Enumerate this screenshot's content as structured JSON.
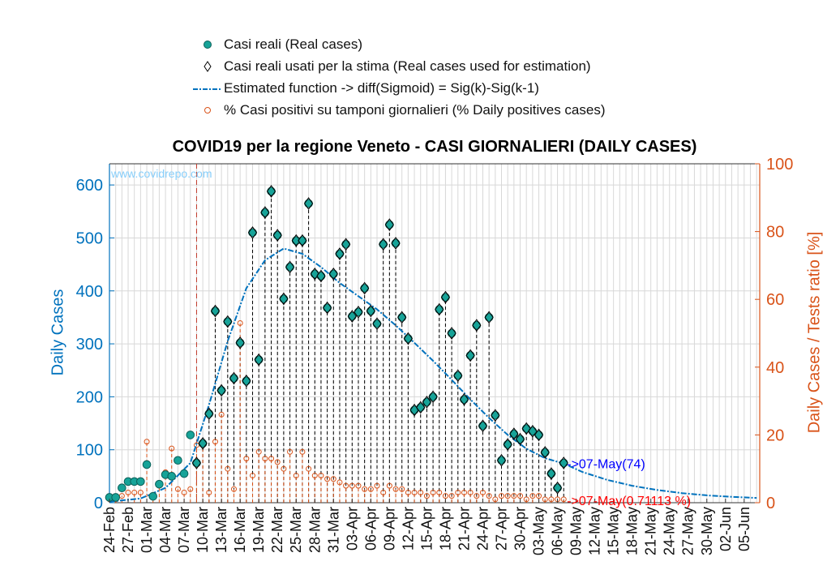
{
  "legend": {
    "real_cases": "Casi reali (Real cases)",
    "used_cases": "Casi reali usati per la stima (Real cases used for estimation)",
    "estimated": "Estimated function -> diff(Sigmoid) = Sig(k)-Sig(k-1)",
    "positives": "% Casi positivi su tamponi giornalieri (% Daily positives cases)"
  },
  "watermark": "www.covidrepo.com",
  "colors": {
    "real": "#17A398",
    "estimate": "#0072BD",
    "percent": "#D95319",
    "annot_blue": "#0000FF",
    "annot_red": "#FF0000"
  },
  "chart_data": {
    "type": "line",
    "title": "COVID19 per la regione Veneto - CASI GIORNALIERI (DAILY CASES)",
    "ylabel_left": "Daily Cases",
    "ylabel_right": "Daily Cases / Tests ratio [%]",
    "ylim_left": [
      0,
      640
    ],
    "ylim_right": [
      0,
      100
    ],
    "yticks_left": [
      0,
      100,
      200,
      300,
      400,
      500,
      600
    ],
    "yticks_right": [
      0,
      20,
      40,
      60,
      80,
      100
    ],
    "start_date": "24-Feb",
    "end_date": "07-Jun",
    "xtick_labels": [
      "24-Feb",
      "27-Feb",
      "01-Mar",
      "04-Mar",
      "07-Mar",
      "10-Mar",
      "13-Mar",
      "16-Mar",
      "19-Mar",
      "22-Mar",
      "25-Mar",
      "28-Mar",
      "31-Mar",
      "03-Apr",
      "06-Apr",
      "09-Apr",
      "12-Apr",
      "15-Apr",
      "18-Apr",
      "21-Apr",
      "24-Apr",
      "27-Apr",
      "30-Apr",
      "03-May",
      "06-May",
      "09-May",
      "12-May",
      "15-May",
      "18-May",
      "21-May",
      "24-May",
      "27-May",
      "30-May",
      "02-Jun",
      "05-Jun"
    ],
    "grid": true,
    "vline_date": "09-Mar",
    "series": [
      {
        "name": "Casi reali (Real cases)",
        "dates": [
          "24-Feb",
          "25-Feb",
          "26-Feb",
          "27-Feb",
          "28-Feb",
          "29-Feb",
          "01-Mar",
          "02-Mar",
          "03-Mar",
          "04-Mar",
          "05-Mar",
          "06-Mar",
          "07-Mar",
          "08-Mar",
          "09-Mar",
          "10-Mar",
          "11-Mar",
          "12-Mar",
          "13-Mar",
          "14-Mar",
          "15-Mar",
          "16-Mar",
          "17-Mar",
          "18-Mar",
          "19-Mar",
          "20-Mar",
          "21-Mar",
          "22-Mar",
          "23-Mar",
          "24-Mar",
          "25-Mar",
          "26-Mar",
          "27-Mar",
          "28-Mar",
          "29-Mar",
          "30-Mar",
          "31-Mar",
          "01-Apr",
          "02-Apr",
          "03-Apr",
          "04-Apr",
          "05-Apr",
          "06-Apr",
          "07-Apr",
          "08-Apr",
          "09-Apr",
          "10-Apr",
          "11-Apr",
          "12-Apr",
          "13-Apr",
          "14-Apr",
          "15-Apr",
          "16-Apr",
          "17-Apr",
          "18-Apr",
          "19-Apr",
          "20-Apr",
          "21-Apr",
          "22-Apr",
          "23-Apr",
          "24-Apr",
          "25-Apr",
          "26-Apr",
          "27-Apr",
          "28-Apr",
          "29-Apr",
          "30-Apr",
          "01-May",
          "02-May",
          "03-May",
          "04-May",
          "05-May",
          "06-May",
          "07-May"
        ],
        "values": [
          10,
          10,
          28,
          40,
          40,
          40,
          72,
          12,
          35,
          53,
          50,
          80,
          55,
          128,
          75,
          112,
          168,
          362,
          212,
          342,
          235,
          302,
          230,
          510,
          270,
          548,
          588,
          505,
          385,
          445,
          495,
          495,
          565,
          432,
          428,
          368,
          432,
          470,
          488,
          352,
          360,
          405,
          362,
          338,
          488,
          525,
          490,
          350,
          310,
          175,
          180,
          190,
          200,
          365,
          388,
          320,
          240,
          195,
          278,
          335,
          145,
          350,
          165,
          80,
          110,
          130,
          120,
          140,
          135,
          128,
          95,
          55,
          28,
          75
        ],
        "color": "#17A398"
      },
      {
        "name": "Estimated function -> diff(Sigmoid) = Sig(k)-Sig(k-1)",
        "dates": [
          "24-Feb",
          "29-Feb",
          "04-Mar",
          "08-Mar",
          "11-Mar",
          "14-Mar",
          "17-Mar",
          "20-Mar",
          "23-Mar",
          "26-Mar",
          "29-Mar",
          "01-Apr",
          "04-Apr",
          "07-Apr",
          "10-Apr",
          "13-Apr",
          "16-Apr",
          "19-Apr",
          "22-Apr",
          "25-Apr",
          "28-Apr",
          "01-May",
          "04-May",
          "07-May",
          "10-May",
          "14-May",
          "18-May",
          "22-May",
          "26-May",
          "30-May",
          "03-Jun",
          "07-Jun"
        ],
        "values": [
          2,
          8,
          28,
          75,
          185,
          305,
          405,
          458,
          480,
          470,
          445,
          415,
          390,
          365,
          335,
          302,
          268,
          232,
          195,
          160,
          128,
          102,
          84,
          74,
          58,
          43,
          32,
          24,
          18,
          14,
          11,
          9
        ],
        "color": "#0072BD"
      },
      {
        "name": "% Casi positivi su tamponi giornalieri (% Daily positives cases)",
        "dates": [
          "24-Feb",
          "25-Feb",
          "26-Feb",
          "27-Feb",
          "28-Feb",
          "29-Feb",
          "01-Mar",
          "02-Mar",
          "03-Mar",
          "04-Mar",
          "05-Mar",
          "06-Mar",
          "07-Mar",
          "08-Mar",
          "09-Mar",
          "10-Mar",
          "11-Mar",
          "12-Mar",
          "13-Mar",
          "14-Mar",
          "15-Mar",
          "16-Mar",
          "17-Mar",
          "18-Mar",
          "19-Mar",
          "20-Mar",
          "21-Mar",
          "22-Mar",
          "23-Mar",
          "24-Mar",
          "25-Mar",
          "26-Mar",
          "27-Mar",
          "28-Mar",
          "29-Mar",
          "30-Mar",
          "31-Mar",
          "01-Apr",
          "02-Apr",
          "03-Apr",
          "04-Apr",
          "05-Apr",
          "06-Apr",
          "07-Apr",
          "08-Apr",
          "09-Apr",
          "10-Apr",
          "11-Apr",
          "12-Apr",
          "13-Apr",
          "14-Apr",
          "15-Apr",
          "16-Apr",
          "17-Apr",
          "18-Apr",
          "19-Apr",
          "20-Apr",
          "21-Apr",
          "22-Apr",
          "23-Apr",
          "24-Apr",
          "25-Apr",
          "26-Apr",
          "27-Apr",
          "28-Apr",
          "29-Apr",
          "30-Apr",
          "01-May",
          "02-May",
          "03-May",
          "04-May",
          "05-May",
          "06-May",
          "07-May"
        ],
        "values": [
          1,
          1,
          2,
          3,
          3,
          3,
          18,
          2,
          5,
          9,
          16,
          4,
          3,
          4,
          17,
          17,
          3,
          18,
          26,
          10,
          4,
          53,
          13,
          8,
          15,
          13,
          13,
          12,
          10,
          15,
          8,
          15,
          10,
          8,
          8,
          7,
          7,
          6,
          5,
          5,
          5,
          4,
          4,
          5,
          3,
          5,
          4,
          4,
          3,
          3,
          3,
          2,
          3,
          3,
          2,
          2,
          3,
          3,
          3,
          2,
          3,
          2,
          1,
          2,
          2,
          2,
          2,
          1,
          2,
          2,
          1,
          1,
          1,
          1
        ],
        "color": "#D95319"
      }
    ],
    "annotations": [
      {
        "text": "->07-May(74)",
        "date": "07-May",
        "value_left": 74,
        "color": "#0000FF"
      },
      {
        "text": "->07-May(0.71113 %)",
        "date": "07-May",
        "value_right": 0.71113,
        "color": "#FF0000"
      }
    ]
  }
}
